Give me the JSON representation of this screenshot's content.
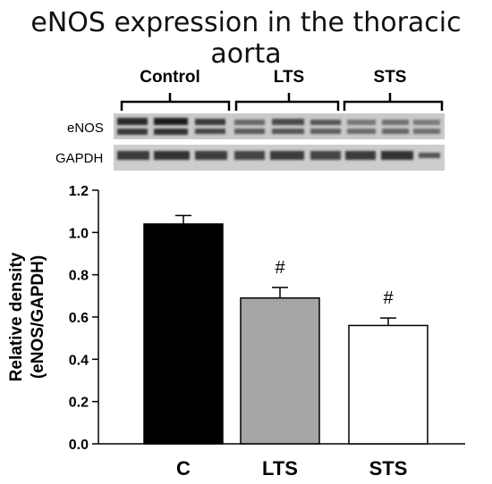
{
  "title": "eNOS expression in the thoracic aorta",
  "blot": {
    "groups": [
      "Control",
      "LTS",
      "STS"
    ],
    "rows": [
      "eNOS",
      "GAPDH"
    ]
  },
  "chart_data": {
    "type": "bar",
    "categories": [
      "C",
      "LTS",
      "STS"
    ],
    "values": [
      1.04,
      0.69,
      0.56
    ],
    "errors": [
      0.04,
      0.05,
      0.035
    ],
    "annotations": [
      "",
      "#",
      "#"
    ],
    "bar_colors": [
      "#000000",
      "#a6a6a6",
      "#ffffff"
    ],
    "ylabel": [
      "Relative density",
      "(eNOS/GAPDH)"
    ],
    "ylim": [
      0,
      1.2
    ],
    "yticks": [
      0.0,
      0.2,
      0.4,
      0.6,
      0.8,
      1.0,
      1.2
    ],
    "grid": false
  }
}
